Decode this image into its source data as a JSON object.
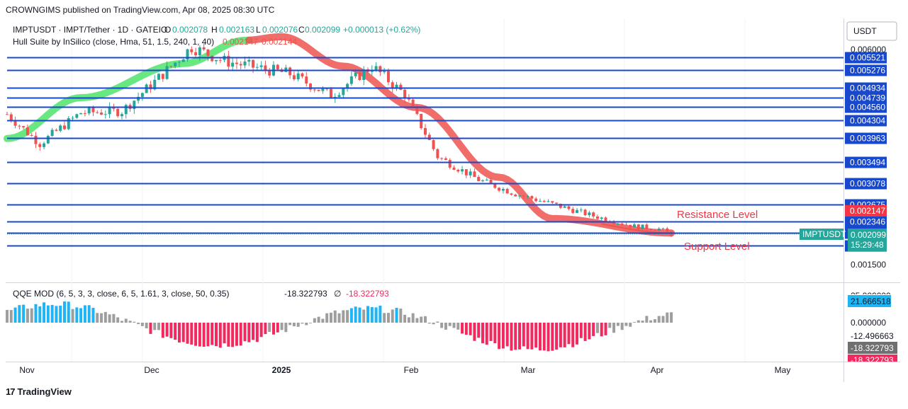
{
  "published": "CROWNGIMS published on TradingView.com, Apr 08, 2025 08:30 UTC",
  "brand": "TradingView",
  "colors": {
    "level_line": "#1848cc",
    "bull": "#26a69a",
    "bear": "#ef5350",
    "hull_bull": "#4fe36a",
    "hull_bear": "#ef5350",
    "annotation": "#f23645",
    "qqe_gray": "#9e9e9e",
    "qqe_blue": "#1fb5f5",
    "qqe_red": "#f2295e",
    "qqe_small_red": "#ef4569"
  },
  "legend": {
    "symbol_line": "IMPTUSDT · IMPT/Tether · 1D · GATEIO",
    "o_label": "O",
    "o_value": "0.002078",
    "h_label": "H",
    "h_value": "0.002163",
    "l_label": "L",
    "l_value": "0.002076",
    "c_label": "C",
    "c_value": "0.002099",
    "change": "+0.000013 (+0.62%)",
    "hull_title": "Hull Suite by InSilico (close, Hma, 51, 1.5, 240, 1, 40)",
    "hull_v1": "0.002147",
    "hull_v2": "0.002144"
  },
  "qqe_legend": {
    "title": "QQE MOD (6, 5, 3, 3, close, 6, 5, 1.61, 3, close, 50, 0.35)",
    "v1": "-18.322793",
    "sym": "∅",
    "v2": "-18.322793"
  },
  "price_axis": {
    "currency": "USDT",
    "top_partial": "0.006000",
    "bottom_partial": "0.001500",
    "level_badges": [
      "0.005521",
      "0.005276",
      "0.004934",
      "0.004739",
      "0.004560",
      "0.004304",
      "0.003963",
      "0.003494",
      "0.003078",
      "0.002675",
      "0.002346",
      "0.002124",
      "0.001878"
    ],
    "hull_badge": "0.002147",
    "symbol_badge": "IMPTUSDT",
    "last_price": "0.002099",
    "countdown": "15:29:48"
  },
  "qqe_axis": {
    "top_partial": "25.000000",
    "badge_value": "21.666518",
    "zero": "0.000000",
    "minus": "-12.496663",
    "badge2": "-18.322793",
    "badge3": "-18.322793"
  },
  "time_axis": [
    "Nov",
    "Dec",
    "2025",
    "Feb",
    "Mar",
    "Apr",
    "May"
  ],
  "annotations": {
    "resistance": "Resistance Level",
    "support": "Support Level"
  },
  "chart_data": {
    "type": "candlestick",
    "timeframe": "1D",
    "x_range": [
      "2024-10-28",
      "2025-05-20"
    ],
    "y_range": [
      0.0015,
      0.0061
    ],
    "horizontal_levels": [
      0.005521,
      0.005276,
      0.004934,
      0.004739,
      0.00456,
      0.004304,
      0.003963,
      0.003494,
      0.003078,
      0.002675,
      0.002346,
      0.002124,
      0.001878
    ],
    "last_close": 0.002099,
    "closes_key_points": [
      {
        "x": "2024-10-28",
        "close": 0.00442
      },
      {
        "x": "2024-11-05",
        "close": 0.00385
      },
      {
        "x": "2024-11-15",
        "close": 0.00445
      },
      {
        "x": "2024-11-25",
        "close": 0.00448
      },
      {
        "x": "2024-12-03",
        "close": 0.00505
      },
      {
        "x": "2024-12-12",
        "close": 0.00572
      },
      {
        "x": "2024-12-20",
        "close": 0.00545
      },
      {
        "x": "2024-12-28",
        "close": 0.00532
      },
      {
        "x": "2025-01-05",
        "close": 0.0052
      },
      {
        "x": "2025-01-15",
        "close": 0.00478
      },
      {
        "x": "2025-01-25",
        "close": 0.00535
      },
      {
        "x": "2025-02-02",
        "close": 0.0048
      },
      {
        "x": "2025-02-10",
        "close": 0.0036
      },
      {
        "x": "2025-02-20",
        "close": 0.00315
      },
      {
        "x": "2025-03-01",
        "close": 0.00288
      },
      {
        "x": "2025-03-10",
        "close": 0.00268
      },
      {
        "x": "2025-03-20",
        "close": 0.00245
      },
      {
        "x": "2025-03-30",
        "close": 0.00225
      },
      {
        "x": "2025-04-05",
        "close": 0.0022
      },
      {
        "x": "2025-04-08",
        "close": 0.002099
      }
    ],
    "hull_suite": [
      {
        "x": "2024-10-28",
        "value": 0.00395,
        "trend": "bull"
      },
      {
        "x": "2024-11-15",
        "value": 0.00474,
        "trend": "bull"
      },
      {
        "x": "2024-12-10",
        "value": 0.0054,
        "trend": "bull"
      },
      {
        "x": "2024-12-25",
        "value": 0.00585,
        "trend": "bull"
      },
      {
        "x": "2025-01-03",
        "value": 0.00592,
        "trend": "bear"
      },
      {
        "x": "2025-01-18",
        "value": 0.00535,
        "trend": "bear"
      },
      {
        "x": "2025-02-05",
        "value": 0.00455,
        "trend": "bear"
      },
      {
        "x": "2025-02-25",
        "value": 0.0032,
        "trend": "bear"
      },
      {
        "x": "2025-03-10",
        "value": 0.0024,
        "trend": "bear"
      },
      {
        "x": "2025-04-08",
        "value": 0.00212,
        "trend": "bear"
      }
    ],
    "qqe_mod": {
      "range": [
        -25,
        25
      ],
      "last": -18.322793
    }
  }
}
